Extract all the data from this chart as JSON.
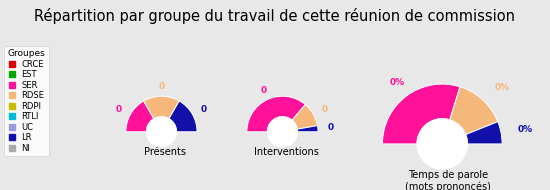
{
  "title": "Répartition par groupe du travail de cette réunion de commission",
  "background_color": "#e8e8e8",
  "groups": [
    "CRCE",
    "EST",
    "SER",
    "RDSE",
    "RDPI",
    "RTLI",
    "UC",
    "LR",
    "NI"
  ],
  "colors": [
    "#dd0000",
    "#00aa00",
    "#ff1199",
    "#f5b87a",
    "#ccbb00",
    "#00bbdd",
    "#9999dd",
    "#1111aa",
    "#aaaaaa"
  ],
  "presences": [
    0,
    0,
    1,
    1,
    0,
    0,
    0,
    1,
    0
  ],
  "interventions": [
    0,
    0,
    13,
    4,
    0,
    0,
    0,
    1,
    0
  ],
  "temps_parole_pct": [
    0,
    0,
    59,
    28,
    0,
    0,
    0,
    12,
    0
  ],
  "chart_labels": [
    "Présents",
    "Interventions",
    "Temps de parole\n(mots prononcés)"
  ],
  "legend_title": "Groupes",
  "legend_fontsize": 6.0,
  "title_fontsize": 10.5
}
